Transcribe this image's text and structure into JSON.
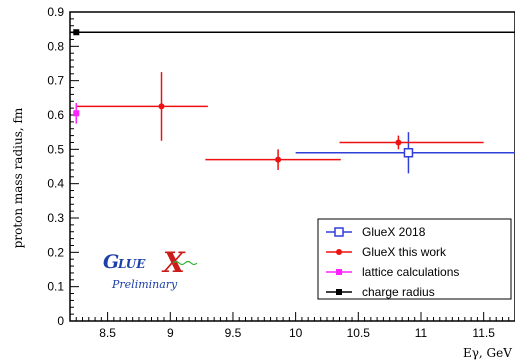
{
  "chart_data": {
    "type": "scatter",
    "xlabel": "Eγ, GeV",
    "ylabel": "proton mass radius, fm",
    "xlim": [
      8.2,
      11.75
    ],
    "ylim": [
      0,
      0.9
    ],
    "x_ticks": [
      "8.5",
      "9",
      "9.5",
      "10",
      "10.5",
      "11",
      "11.5"
    ],
    "y_ticks": [
      "0",
      "0.1",
      "0.2",
      "0.3",
      "0.4",
      "0.5",
      "0.6",
      "0.7",
      "0.8",
      "0.9"
    ],
    "grid": false,
    "legend_placement": "bottom-right",
    "series": [
      {
        "name": "GlueX 2018",
        "color": "#2f3fd8",
        "marker": "open-square",
        "points": [
          {
            "x": 10.9,
            "y": 0.49,
            "xerr": [
              0.9,
              0.85
            ],
            "yerr": [
              0.06,
              0.06
            ]
          }
        ]
      },
      {
        "name": "GlueX this work",
        "color": "#ee1111",
        "marker": "filled-circle",
        "points": [
          {
            "x": 8.93,
            "y": 0.625,
            "xerr": [
              0.68,
              0.37
            ],
            "yerr": [
              0.1,
              0.1
            ]
          },
          {
            "x": 9.86,
            "y": 0.47,
            "xerr": [
              0.58,
              0.5
            ],
            "yerr": [
              0.03,
              0.03
            ]
          },
          {
            "x": 10.82,
            "y": 0.52,
            "xerr": [
              0.47,
              0.68
            ],
            "yerr": [
              0.02,
              0.02
            ]
          }
        ]
      },
      {
        "name": "lattice calculations",
        "color": "#ff22ff",
        "marker": "filled-square",
        "points": [
          {
            "x": 8.25,
            "y": 0.605,
            "xerr": [
              0,
              0
            ],
            "yerr": [
              0.03,
              0.03
            ]
          }
        ]
      },
      {
        "name": "charge radius",
        "color": "#000000",
        "marker": "filled-square",
        "points": [
          {
            "x": 8.25,
            "y": 0.841,
            "xerr": [
              0,
              0
            ],
            "yerr": [
              0,
              0
            ]
          }
        ],
        "hline": 0.841
      }
    ],
    "logo": {
      "text": "GlueX",
      "subtitle": "Preliminary"
    }
  }
}
